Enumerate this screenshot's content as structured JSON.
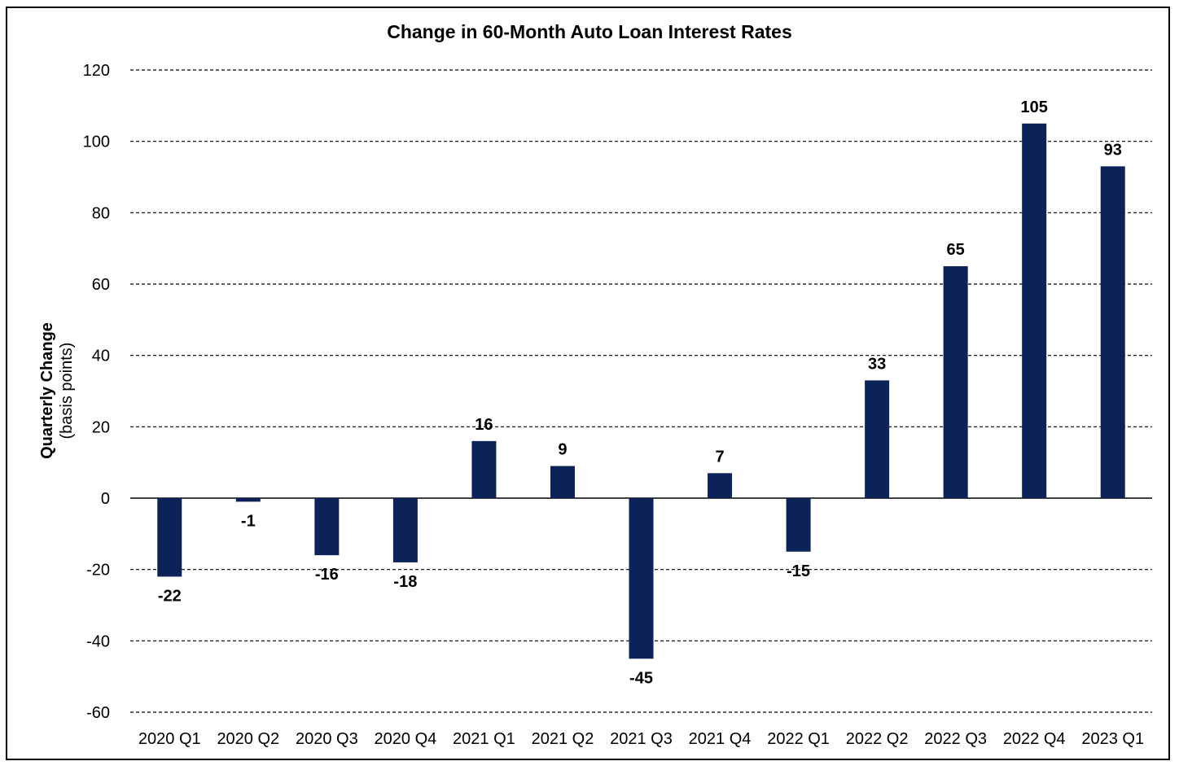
{
  "chart_data": {
    "type": "bar",
    "title": "Change in 60-Month Auto Loan Interest Rates",
    "ylabel": "Quarterly Change",
    "ylabel_sub": "(basis points)",
    "xlabel": "",
    "categories": [
      "2020 Q1",
      "2020 Q2",
      "2020 Q3",
      "2020 Q4",
      "2021 Q1",
      "2021 Q2",
      "2021 Q3",
      "2021 Q4",
      "2022 Q1",
      "2022 Q2",
      "2022 Q3",
      "2022 Q4",
      "2023 Q1"
    ],
    "values": [
      -22,
      -1,
      -16,
      -18,
      16,
      9,
      -45,
      7,
      -15,
      33,
      65,
      105,
      93
    ],
    "data_labels": [
      "-22",
      "-1",
      "-16",
      "-18",
      "16",
      "9",
      "-45",
      "7",
      "-15",
      "33",
      "65",
      "105",
      "93"
    ],
    "ylim": [
      -60,
      120
    ],
    "yticks": [
      120,
      100,
      80,
      60,
      40,
      20,
      0,
      -20,
      -40,
      -60
    ],
    "grid": true,
    "grid_style": "dashed",
    "legend": "none",
    "colors": {
      "bar": "#0b2359",
      "text": "#000000",
      "grid": "#000000"
    }
  }
}
